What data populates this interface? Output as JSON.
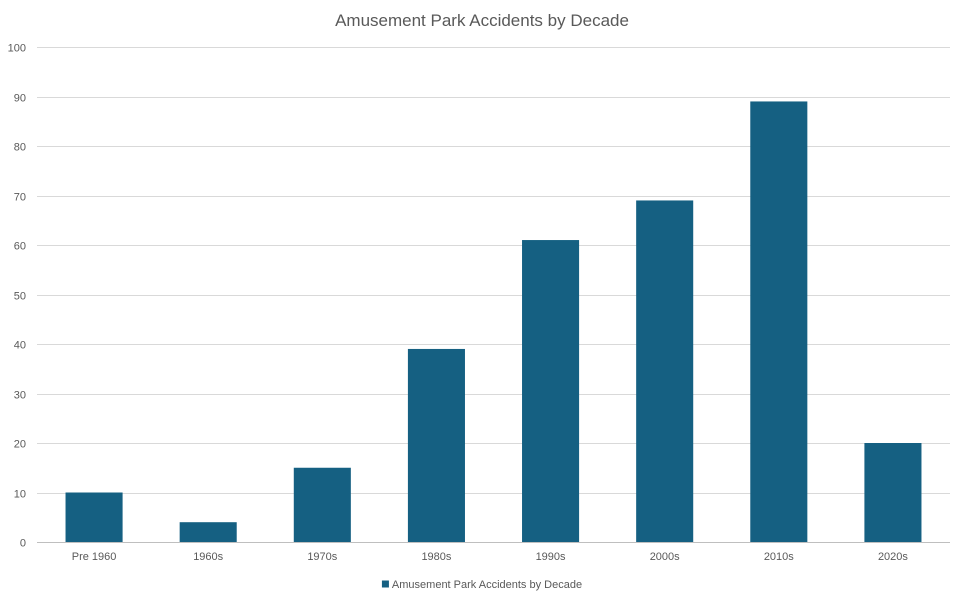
{
  "chart_data": {
    "type": "bar",
    "title": "Amusement Park Accidents by Decade",
    "xlabel": "",
    "ylabel": "",
    "categories": [
      "Pre 1960",
      "1960s",
      "1970s",
      "1980s",
      "1990s",
      "2000s",
      "2010s",
      "2020s"
    ],
    "series": [
      {
        "name": "Amusement Park Accidents by Decade",
        "values": [
          10,
          4,
          15,
          39,
          61,
          69,
          89,
          20
        ]
      }
    ],
    "ylim": [
      0,
      100
    ],
    "yticks": [
      "0",
      "10",
      "20",
      "30",
      "40",
      "50",
      "60",
      "70",
      "80",
      "90",
      "100"
    ],
    "grid": true,
    "legend_position": "bottom",
    "colors": {
      "bar": "#156082",
      "grid": "#d9d9d9",
      "axis": "#bfbfbf",
      "text": "#595959"
    }
  }
}
